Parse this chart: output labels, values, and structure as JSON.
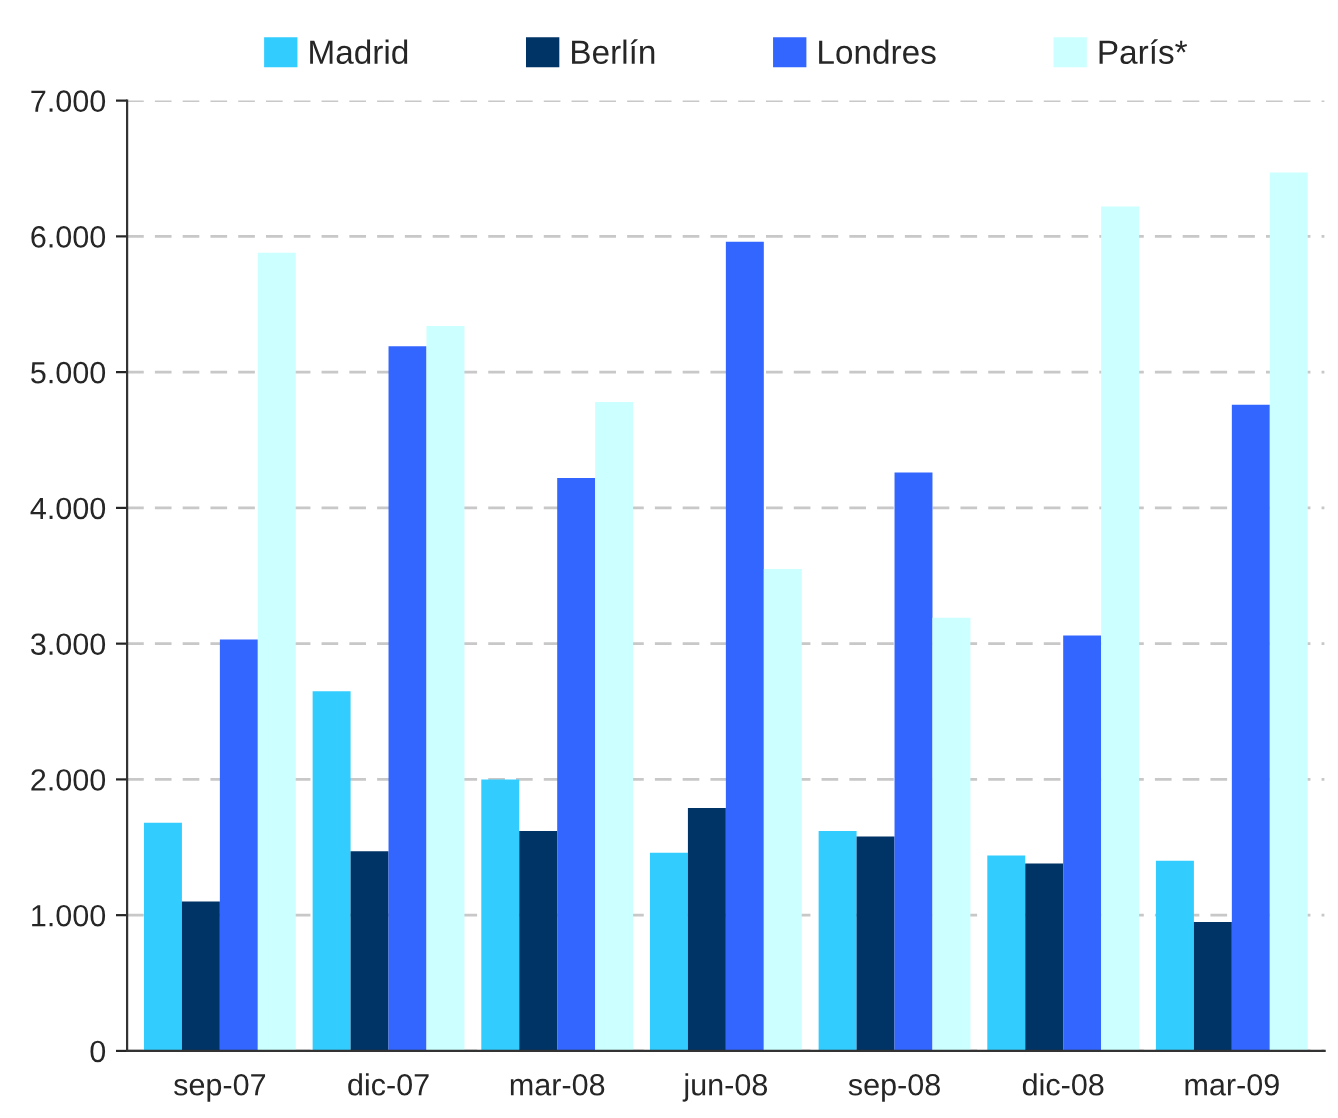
{
  "chart_data": {
    "type": "bar",
    "categories": [
      "sep-07",
      "dic-07",
      "mar-08",
      "jun-08",
      "sep-08",
      "dic-08",
      "mar-09"
    ],
    "series": [
      {
        "name": "Madrid",
        "color": "#33ccff",
        "values": [
          1680,
          2650,
          2000,
          1460,
          1620,
          1440,
          1400
        ]
      },
      {
        "name": "Berlín",
        "color": "#003366",
        "values": [
          1100,
          1470,
          1620,
          1790,
          1580,
          1380,
          950
        ]
      },
      {
        "name": "Londres",
        "color": "#3366ff",
        "values": [
          3030,
          5190,
          4220,
          5960,
          4260,
          3060,
          4760
        ]
      },
      {
        "name": "París*",
        "color": "#ccffff",
        "values": [
          5880,
          5340,
          4780,
          3550,
          3190,
          6220,
          6470
        ]
      }
    ],
    "ylim": [
      0,
      7000
    ],
    "yticks": [
      0,
      {
        "value": 1000,
        "label": "1.000"
      },
      {
        "value": 2000,
        "label": "2.000"
      },
      {
        "value": 3000,
        "label": "3.000"
      },
      {
        "value": 4000,
        "label": "4.000"
      },
      {
        "value": 5000,
        "label": "5.000"
      },
      {
        "value": 6000,
        "label": "6.000"
      },
      {
        "value": 7000,
        "label": "7.000"
      }
    ],
    "grid": "y",
    "legend": "top"
  }
}
